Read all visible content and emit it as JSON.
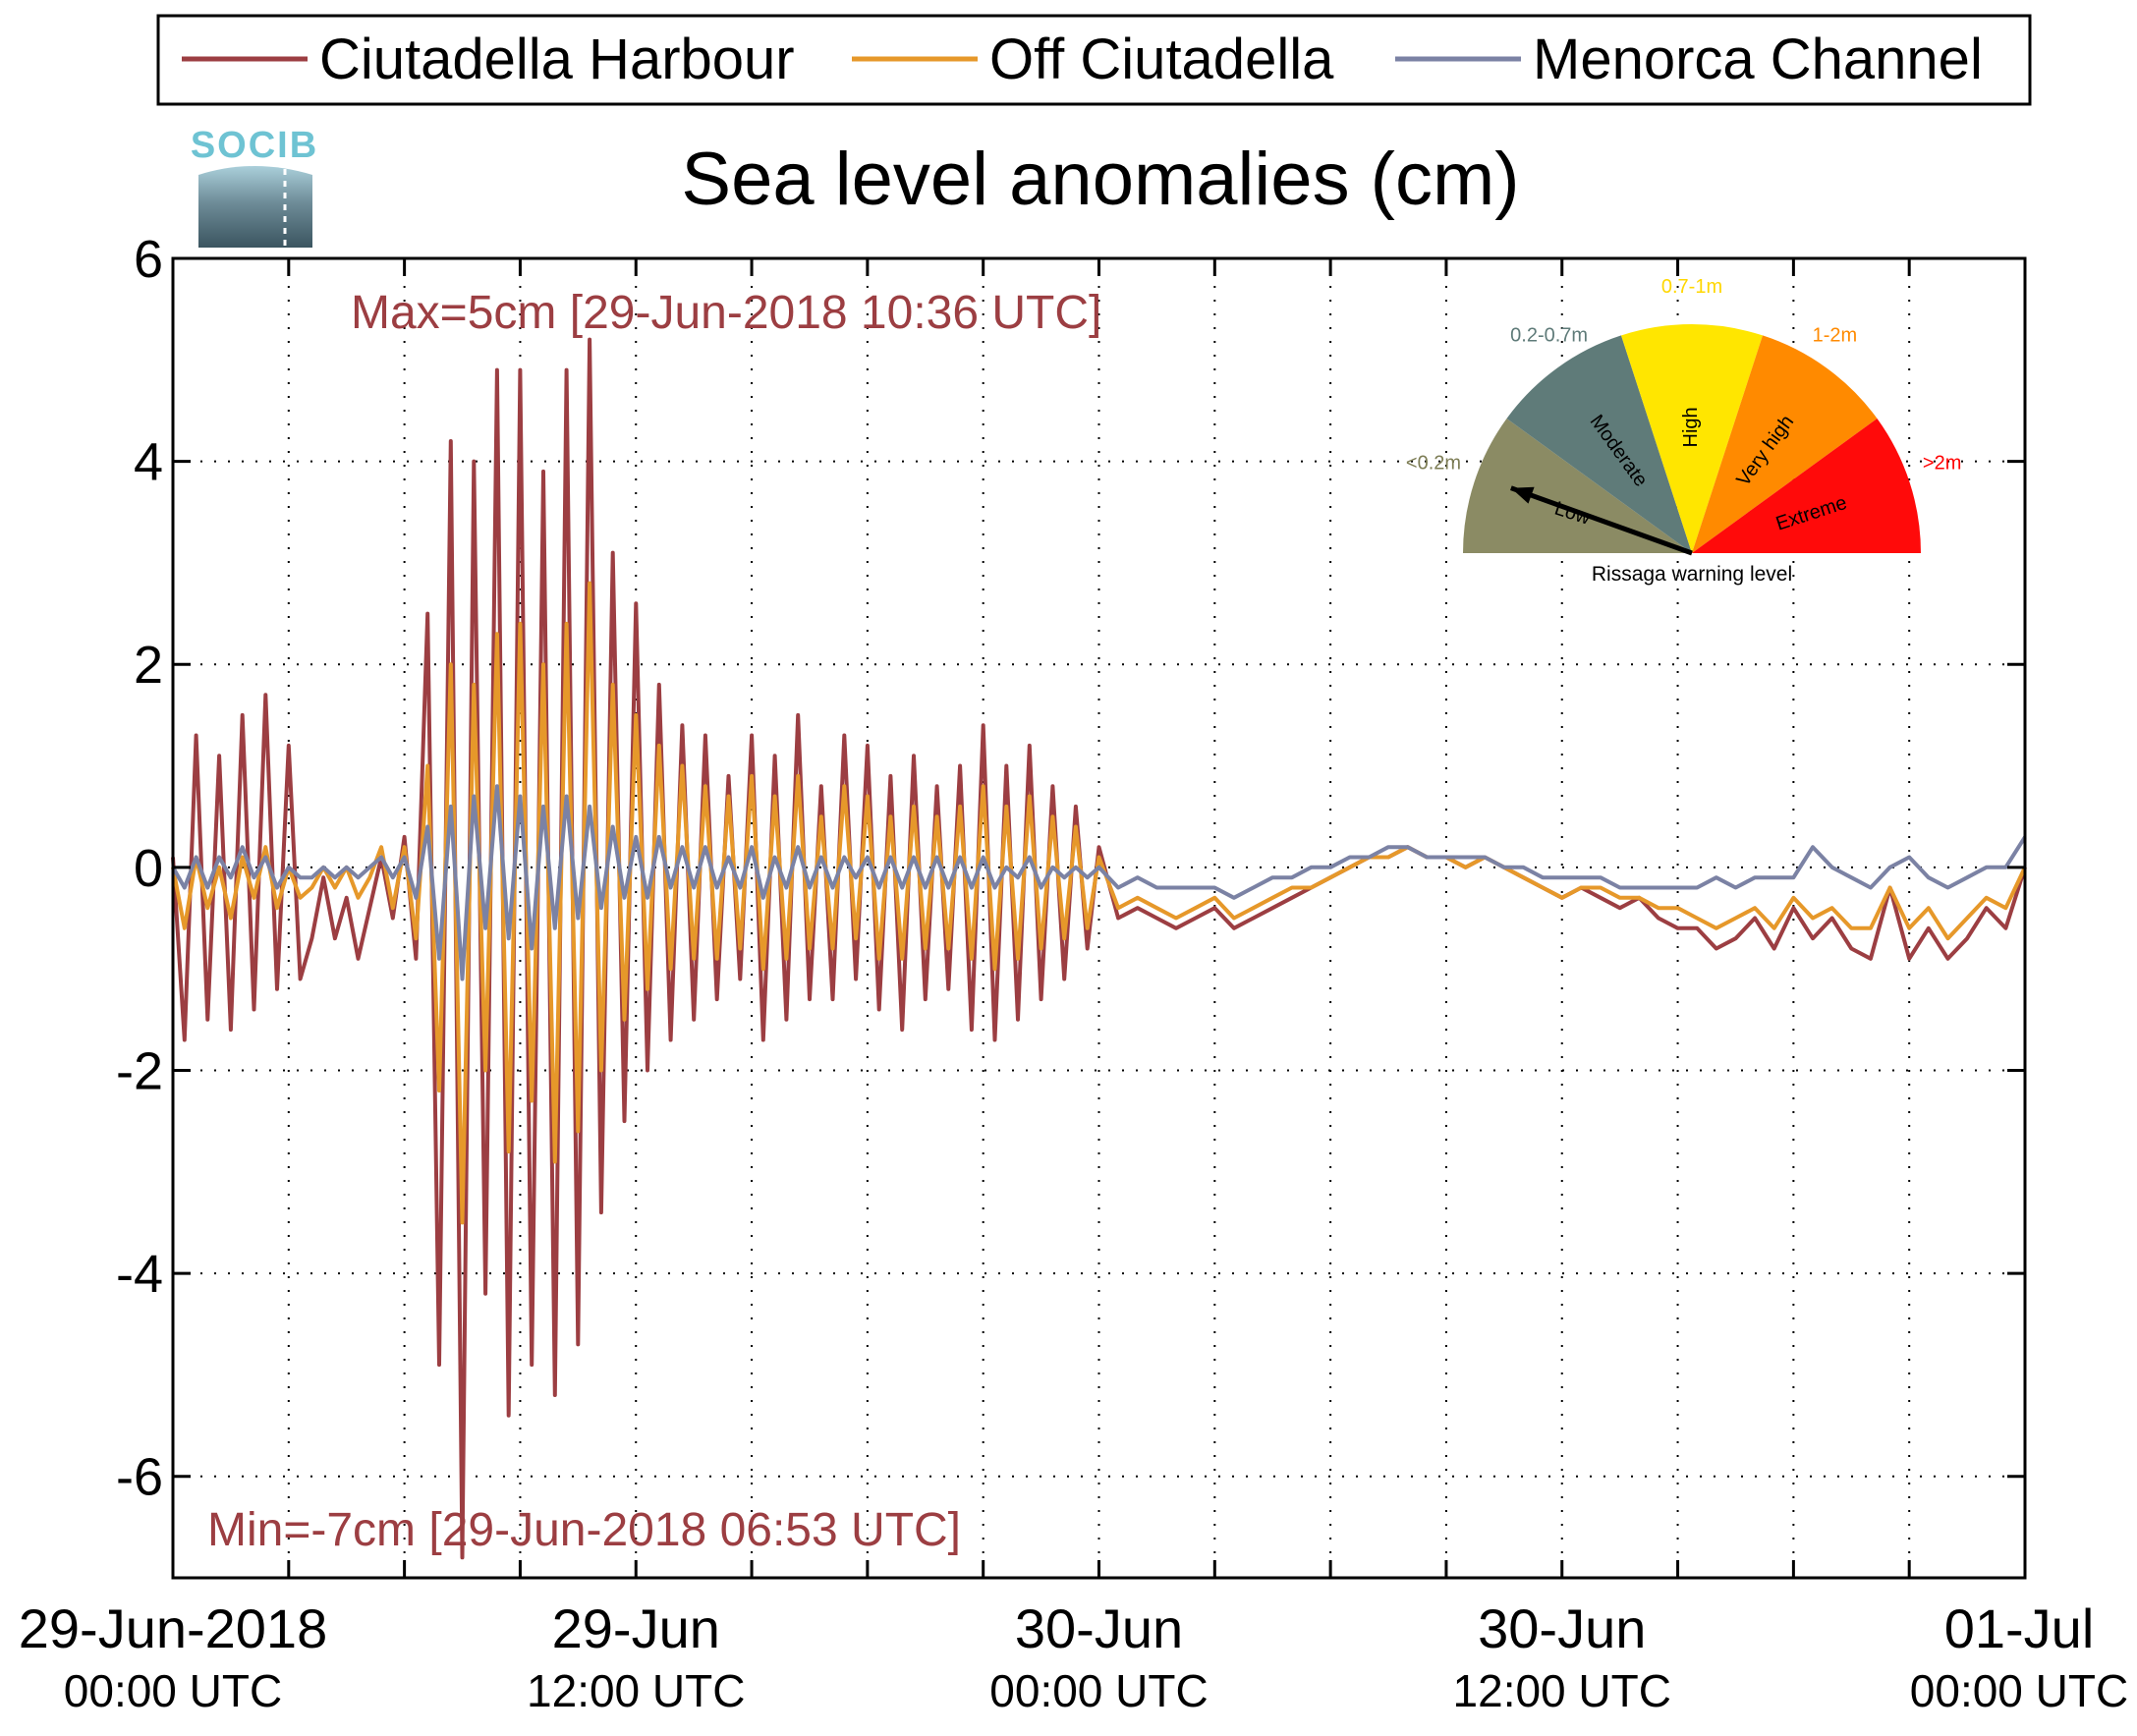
{
  "title": "Sea level anomalies (cm)",
  "logo_text": "SOCIB",
  "legend": [
    {
      "label": "Ciutadella Harbour",
      "color": "#9c3e42"
    },
    {
      "label": "Off Ciutadella",
      "color": "#e6982a"
    },
    {
      "label": "Menorca Channel",
      "color": "#7b82a4"
    }
  ],
  "annotations": {
    "max": "Max=5cm [29-Jun-2018 10:36 UTC]",
    "min": "Min=-7cm [29-Jun-2018 06:53 UTC]",
    "color": "#9c3e42"
  },
  "gauge": {
    "caption": "Rissaga warning level",
    "needle_level": "Low",
    "segments": [
      {
        "name": "Low",
        "range": "<0.2m",
        "color": "#8b8b64",
        "range_color": "#7d7d55"
      },
      {
        "name": "Moderate",
        "range": "0.2-0.7m",
        "color": "#5f7b79",
        "range_color": "#5f7b79"
      },
      {
        "name": "High",
        "range": "0.7-1m",
        "color": "#ffe600",
        "range_color": "#ffd700"
      },
      {
        "name": "Very high",
        "range": "1-2m",
        "color": "#ff8a00",
        "range_color": "#ff8a00"
      },
      {
        "name": "Extreme",
        "range": ">2m",
        "color": "#ff0a0a",
        "range_color": "#ff0000"
      }
    ]
  },
  "chart_data": {
    "type": "line",
    "title": "Sea level anomalies (cm)",
    "xlabel": "",
    "ylabel": "",
    "x_unit": "hours since 29-Jun-2018 00:00 UTC",
    "xlim": [
      0,
      48
    ],
    "ylim": [
      -7,
      6
    ],
    "y_ticks": [
      -6,
      -4,
      -2,
      0,
      2,
      4,
      6
    ],
    "x_tick_labels": [
      {
        "x": 0,
        "line1": "29-Jun-2018",
        "line2": "00:00 UTC"
      },
      {
        "x": 12,
        "line1": "29-Jun",
        "line2": "12:00 UTC"
      },
      {
        "x": 24,
        "line1": "30-Jun",
        "line2": "00:00 UTC"
      },
      {
        "x": 36,
        "line1": "30-Jun",
        "line2": "12:00 UTC"
      },
      {
        "x": 48,
        "line1": "01-Jul",
        "line2": "00:00 UTC"
      }
    ],
    "x_minor_ticks": [
      3,
      6,
      9,
      15,
      18,
      21,
      27,
      30,
      33,
      39,
      42,
      45
    ],
    "grid": true,
    "legend_position": "top",
    "series": [
      {
        "name": "Ciutadella Harbour",
        "color": "#9c3e42",
        "x": [
          0,
          0.3,
          0.6,
          0.9,
          1.2,
          1.5,
          1.8,
          2.1,
          2.4,
          2.7,
          3,
          3.3,
          3.6,
          3.9,
          4.2,
          4.5,
          4.8,
          5.1,
          5.4,
          5.7,
          6,
          6.3,
          6.6,
          6.9,
          7.2,
          7.5,
          7.8,
          8.1,
          8.4,
          8.7,
          9,
          9.3,
          9.6,
          9.9,
          10.2,
          10.5,
          10.8,
          11.1,
          11.4,
          11.7,
          12,
          12.3,
          12.6,
          12.9,
          13.2,
          13.5,
          13.8,
          14.1,
          14.4,
          14.7,
          15,
          15.3,
          15.6,
          15.9,
          16.2,
          16.5,
          16.8,
          17.1,
          17.4,
          17.7,
          18,
          18.3,
          18.6,
          18.9,
          19.2,
          19.5,
          19.8,
          20.1,
          20.4,
          20.7,
          21,
          21.3,
          21.6,
          21.9,
          22.2,
          22.5,
          22.8,
          23.1,
          23.4,
          23.7,
          24,
          24.5,
          25,
          25.5,
          26,
          26.5,
          27,
          27.5,
          28,
          28.5,
          29,
          29.5,
          30,
          30.5,
          31,
          31.5,
          32,
          32.5,
          33,
          33.5,
          34,
          34.5,
          35,
          35.5,
          36,
          36.5,
          37,
          37.5,
          38,
          38.5,
          39,
          39.5,
          40,
          40.5,
          41,
          41.5,
          42,
          42.5,
          43,
          43.5,
          44,
          44.5,
          45,
          45.5,
          46,
          46.5,
          47,
          47.5,
          48
        ],
        "y": [
          0.1,
          -1.7,
          1.3,
          -1.5,
          1.1,
          -1.6,
          1.5,
          -1.4,
          1.7,
          -1.2,
          1.2,
          -1.1,
          -0.7,
          -0.1,
          -0.7,
          -0.3,
          -0.9,
          -0.4,
          0.1,
          -0.5,
          0.3,
          -0.9,
          2.5,
          -4.9,
          4.2,
          -6.8,
          4.0,
          -4.2,
          4.9,
          -5.4,
          4.9,
          -4.9,
          3.9,
          -5.2,
          4.9,
          -4.7,
          5.2,
          -3.4,
          3.1,
          -2.5,
          2.6,
          -2.0,
          1.8,
          -1.7,
          1.4,
          -1.5,
          1.3,
          -1.3,
          0.9,
          -1.1,
          1.3,
          -1.7,
          1.1,
          -1.5,
          1.5,
          -1.3,
          0.8,
          -1.3,
          1.3,
          -1.1,
          1.2,
          -1.4,
          0.9,
          -1.6,
          1.1,
          -1.3,
          0.8,
          -1.2,
          1.0,
          -1.6,
          1.4,
          -1.7,
          1.0,
          -1.5,
          1.2,
          -1.3,
          0.8,
          -1.1,
          0.6,
          -0.8,
          0.2,
          -0.5,
          -0.4,
          -0.5,
          -0.6,
          -0.5,
          -0.4,
          -0.6,
          -0.5,
          -0.4,
          -0.3,
          -0.2,
          -0.1,
          0.0,
          0.1,
          0.1,
          0.2,
          0.1,
          0.1,
          0.0,
          0.1,
          0.0,
          -0.1,
          -0.2,
          -0.3,
          -0.2,
          -0.3,
          -0.4,
          -0.3,
          -0.5,
          -0.6,
          -0.6,
          -0.8,
          -0.7,
          -0.5,
          -0.8,
          -0.4,
          -0.7,
          -0.5,
          -0.8,
          -0.9,
          -0.2,
          -0.9,
          -0.6,
          -0.9,
          -0.7,
          -0.4,
          -0.6,
          0.0
        ]
      },
      {
        "name": "Off Ciutadella",
        "color": "#e6982a",
        "x": [
          0,
          0.3,
          0.6,
          0.9,
          1.2,
          1.5,
          1.8,
          2.1,
          2.4,
          2.7,
          3,
          3.3,
          3.6,
          3.9,
          4.2,
          4.5,
          4.8,
          5.1,
          5.4,
          5.7,
          6,
          6.3,
          6.6,
          6.9,
          7.2,
          7.5,
          7.8,
          8.1,
          8.4,
          8.7,
          9,
          9.3,
          9.6,
          9.9,
          10.2,
          10.5,
          10.8,
          11.1,
          11.4,
          11.7,
          12,
          12.3,
          12.6,
          12.9,
          13.2,
          13.5,
          13.8,
          14.1,
          14.4,
          14.7,
          15,
          15.3,
          15.6,
          15.9,
          16.2,
          16.5,
          16.8,
          17.1,
          17.4,
          17.7,
          18,
          18.3,
          18.6,
          18.9,
          19.2,
          19.5,
          19.8,
          20.1,
          20.4,
          20.7,
          21,
          21.3,
          21.6,
          21.9,
          22.2,
          22.5,
          22.8,
          23.1,
          23.4,
          23.7,
          24,
          24.5,
          25,
          25.5,
          26,
          26.5,
          27,
          27.5,
          28,
          28.5,
          29,
          29.5,
          30,
          30.5,
          31,
          31.5,
          32,
          32.5,
          33,
          33.5,
          34,
          34.5,
          35,
          35.5,
          36,
          36.5,
          37,
          37.5,
          38,
          38.5,
          39,
          39.5,
          40,
          40.5,
          41,
          41.5,
          42,
          42.5,
          43,
          43.5,
          44,
          44.5,
          45,
          45.5,
          46,
          46.5,
          47,
          47.5,
          48
        ],
        "y": [
          0.0,
          -0.6,
          0.1,
          -0.4,
          0.0,
          -0.5,
          0.1,
          -0.3,
          0.2,
          -0.4,
          0.0,
          -0.3,
          -0.2,
          0.0,
          -0.2,
          0.0,
          -0.3,
          -0.1,
          0.2,
          -0.4,
          0.2,
          -0.7,
          1.0,
          -2.2,
          2.0,
          -3.5,
          1.8,
          -2.0,
          2.3,
          -2.8,
          2.4,
          -2.3,
          2.0,
          -2.9,
          2.4,
          -2.6,
          2.8,
          -2.0,
          1.8,
          -1.5,
          1.5,
          -1.2,
          1.2,
          -1.0,
          1.0,
          -0.9,
          0.8,
          -0.9,
          0.7,
          -0.8,
          0.9,
          -1.0,
          0.7,
          -0.9,
          0.9,
          -0.8,
          0.5,
          -0.8,
          0.8,
          -0.7,
          0.7,
          -0.9,
          0.5,
          -0.9,
          0.6,
          -0.8,
          0.5,
          -0.8,
          0.6,
          -0.9,
          0.8,
          -1.0,
          0.6,
          -0.9,
          0.7,
          -0.8,
          0.5,
          -0.7,
          0.4,
          -0.6,
          0.1,
          -0.4,
          -0.3,
          -0.4,
          -0.5,
          -0.4,
          -0.3,
          -0.5,
          -0.4,
          -0.3,
          -0.2,
          -0.2,
          -0.1,
          0.0,
          0.1,
          0.1,
          0.2,
          0.1,
          0.1,
          0.0,
          0.1,
          0.0,
          -0.1,
          -0.2,
          -0.3,
          -0.2,
          -0.2,
          -0.3,
          -0.3,
          -0.4,
          -0.4,
          -0.5,
          -0.6,
          -0.5,
          -0.4,
          -0.6,
          -0.3,
          -0.5,
          -0.4,
          -0.6,
          -0.6,
          -0.2,
          -0.6,
          -0.4,
          -0.7,
          -0.5,
          -0.3,
          -0.4,
          0.0
        ]
      },
      {
        "name": "Menorca Channel",
        "color": "#7b82a4",
        "x": [
          0,
          0.3,
          0.6,
          0.9,
          1.2,
          1.5,
          1.8,
          2.1,
          2.4,
          2.7,
          3,
          3.3,
          3.6,
          3.9,
          4.2,
          4.5,
          4.8,
          5.1,
          5.4,
          5.7,
          6,
          6.3,
          6.6,
          6.9,
          7.2,
          7.5,
          7.8,
          8.1,
          8.4,
          8.7,
          9,
          9.3,
          9.6,
          9.9,
          10.2,
          10.5,
          10.8,
          11.1,
          11.4,
          11.7,
          12,
          12.3,
          12.6,
          12.9,
          13.2,
          13.5,
          13.8,
          14.1,
          14.4,
          14.7,
          15,
          15.3,
          15.6,
          15.9,
          16.2,
          16.5,
          16.8,
          17.1,
          17.4,
          17.7,
          18,
          18.3,
          18.6,
          18.9,
          19.2,
          19.5,
          19.8,
          20.1,
          20.4,
          20.7,
          21,
          21.3,
          21.6,
          21.9,
          22.2,
          22.5,
          22.8,
          23.1,
          23.4,
          23.7,
          24,
          24.5,
          25,
          25.5,
          26,
          26.5,
          27,
          27.5,
          28,
          28.5,
          29,
          29.5,
          30,
          30.5,
          31,
          31.5,
          32,
          32.5,
          33,
          33.5,
          34,
          34.5,
          35,
          35.5,
          36,
          36.5,
          37,
          37.5,
          38,
          38.5,
          39,
          39.5,
          40,
          40.5,
          41,
          41.5,
          42,
          42.5,
          43,
          43.5,
          44,
          44.5,
          45,
          45.5,
          46,
          46.5,
          47,
          47.5,
          48
        ],
        "y": [
          0.0,
          -0.2,
          0.1,
          -0.2,
          0.1,
          -0.1,
          0.2,
          -0.1,
          0.1,
          -0.2,
          0.0,
          -0.1,
          -0.1,
          0.0,
          -0.1,
          0.0,
          -0.1,
          0.0,
          0.1,
          -0.1,
          0.1,
          -0.3,
          0.4,
          -0.9,
          0.6,
          -1.1,
          0.7,
          -0.6,
          0.8,
          -0.7,
          0.7,
          -0.8,
          0.6,
          -0.6,
          0.7,
          -0.5,
          0.6,
          -0.4,
          0.4,
          -0.3,
          0.3,
          -0.3,
          0.3,
          -0.2,
          0.2,
          -0.2,
          0.2,
          -0.2,
          0.1,
          -0.2,
          0.2,
          -0.3,
          0.1,
          -0.2,
          0.2,
          -0.2,
          0.1,
          -0.2,
          0.1,
          -0.1,
          0.1,
          -0.2,
          0.1,
          -0.2,
          0.1,
          -0.2,
          0.1,
          -0.2,
          0.1,
          -0.2,
          0.1,
          -0.2,
          0.0,
          -0.1,
          0.1,
          -0.2,
          0.0,
          -0.1,
          0.0,
          -0.1,
          0.0,
          -0.2,
          -0.1,
          -0.2,
          -0.2,
          -0.2,
          -0.2,
          -0.3,
          -0.2,
          -0.1,
          -0.1,
          0.0,
          0.0,
          0.1,
          0.1,
          0.2,
          0.2,
          0.1,
          0.1,
          0.1,
          0.1,
          0.0,
          0.0,
          -0.1,
          -0.1,
          -0.1,
          -0.1,
          -0.2,
          -0.2,
          -0.2,
          -0.2,
          -0.2,
          -0.1,
          -0.2,
          -0.1,
          -0.1,
          -0.1,
          0.2,
          0.0,
          -0.1,
          -0.2,
          0.0,
          0.1,
          -0.1,
          -0.2,
          -0.1,
          0.0,
          0.0,
          0.3
        ]
      }
    ]
  }
}
